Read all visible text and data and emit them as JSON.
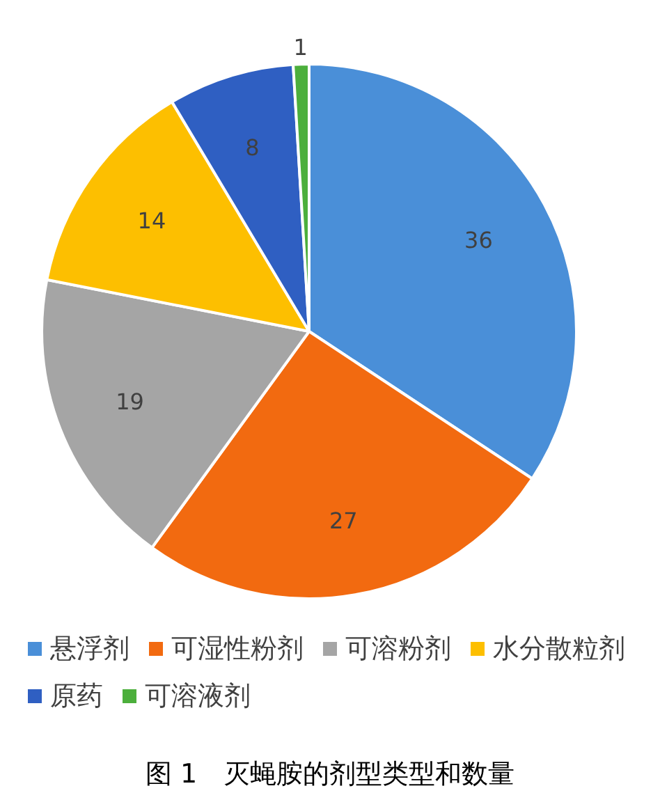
{
  "chart_data": {
    "type": "pie",
    "title": "图 1　灭蝇胺的剂型类型和数量",
    "categories": [
      "悬浮剂",
      "可湿性粉剂",
      "可溶粉剂",
      "水分散粒剂",
      "原药",
      "可溶液剂"
    ],
    "values": [
      36,
      27,
      19,
      14,
      8,
      1
    ],
    "colors": [
      "#4a8fd8",
      "#f26a10",
      "#a5a5a5",
      "#fdbf00",
      "#2f5fc2",
      "#4caf3c"
    ],
    "data_labels": true,
    "legend": "bottom"
  }
}
